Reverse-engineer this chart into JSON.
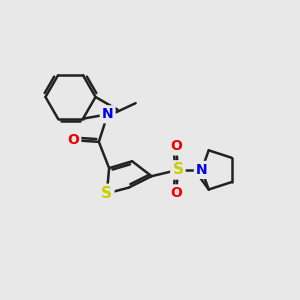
{
  "background_color": "#e8e8e8",
  "bond_color": "#222222",
  "bond_width": 1.8,
  "atom_colors": {
    "N": "#0000ee",
    "O": "#ee0000",
    "S": "#cccc00",
    "C": "#222222"
  },
  "font_size_atom": 10,
  "figsize": [
    3.0,
    3.0
  ],
  "dpi": 100,
  "xlim": [
    0,
    10
  ],
  "ylim": [
    0,
    10
  ]
}
